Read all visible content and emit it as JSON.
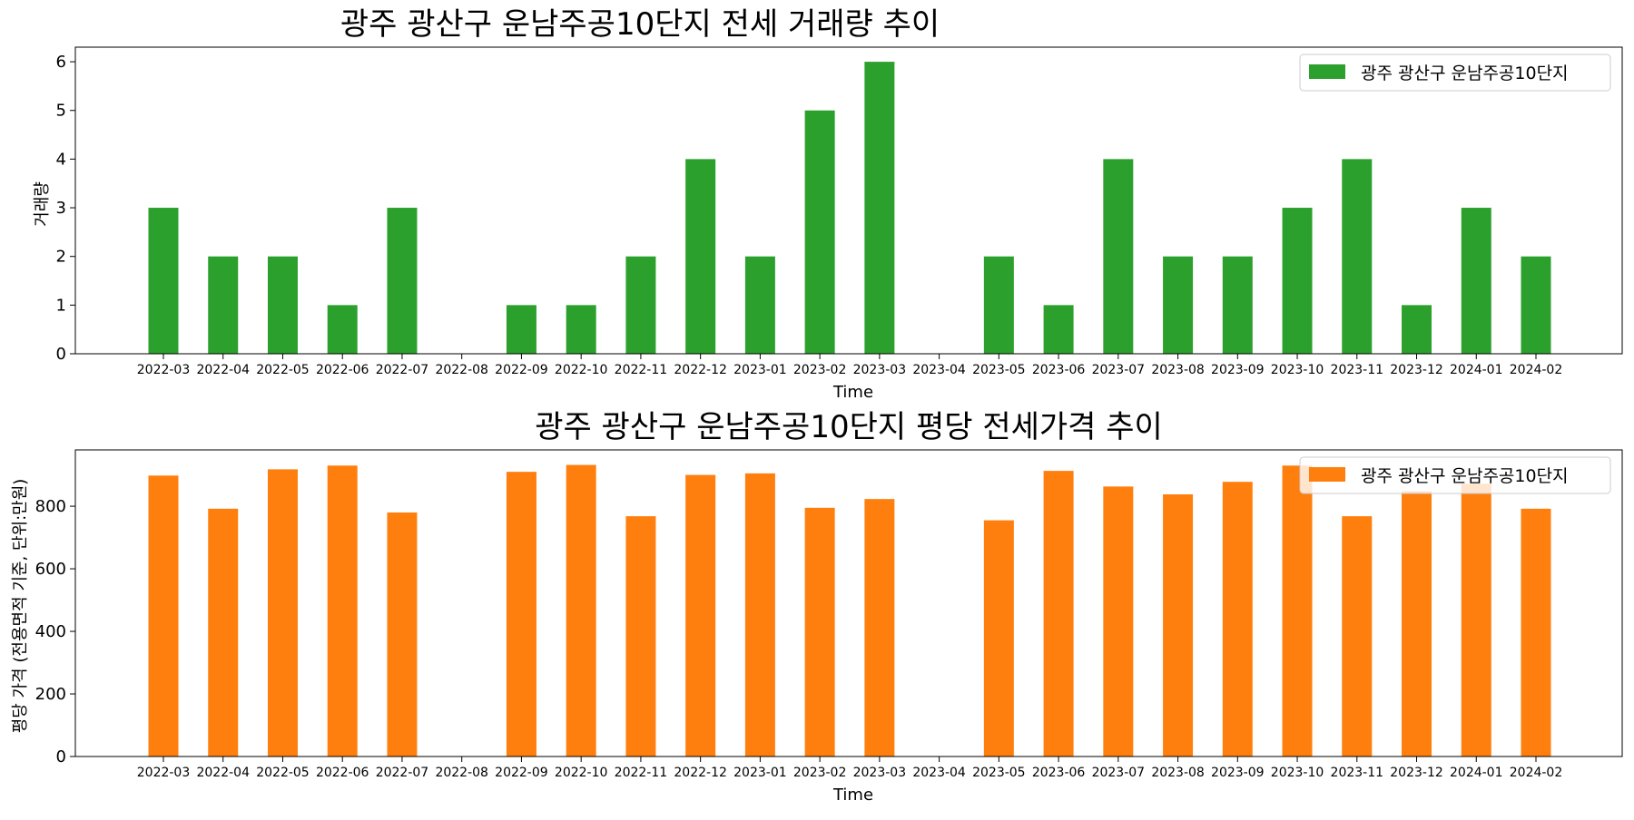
{
  "chart_data": [
    {
      "type": "bar",
      "title": "광주 광산구 운남주공10단지 전세 거래량 추이",
      "xlabel": "Time",
      "ylabel": "거래량",
      "categories": [
        "2022-03",
        "2022-04",
        "2022-05",
        "2022-06",
        "2022-07",
        "2022-08",
        "2022-09",
        "2022-10",
        "2022-11",
        "2022-12",
        "2023-01",
        "2023-02",
        "2023-03",
        "2023-04",
        "2023-05",
        "2023-06",
        "2023-07",
        "2023-08",
        "2023-09",
        "2023-10",
        "2023-11",
        "2023-12",
        "2024-01",
        "2024-02"
      ],
      "series": [
        {
          "name": "광주 광산구 운남주공10단지",
          "color": "#2ca02c",
          "values": [
            3,
            2,
            2,
            1,
            3,
            0,
            1,
            1,
            2,
            4,
            2,
            5,
            6,
            0,
            2,
            1,
            4,
            2,
            2,
            3,
            4,
            1,
            3,
            2
          ]
        }
      ],
      "ylim": [
        0,
        6.3
      ],
      "yticks": [
        0,
        1,
        2,
        3,
        4,
        5,
        6
      ],
      "legend_position": "top-right",
      "grid": false
    },
    {
      "type": "bar",
      "title": "광주 광산구 운남주공10단지 평당 전세가격 추이",
      "xlabel": "Time",
      "ylabel": "평당 가격 (전용면적 기준, 단위:만원)",
      "categories": [
        "2022-03",
        "2022-04",
        "2022-05",
        "2022-06",
        "2022-07",
        "2022-08",
        "2022-09",
        "2022-10",
        "2022-11",
        "2022-12",
        "2023-01",
        "2023-02",
        "2023-03",
        "2023-04",
        "2023-05",
        "2023-06",
        "2023-07",
        "2023-08",
        "2023-09",
        "2023-10",
        "2023-11",
        "2023-12",
        "2024-01",
        "2024-02"
      ],
      "series": [
        {
          "name": "광주 광산구 운남주공10단지",
          "color": "#ff7f0e",
          "values": [
            898,
            792,
            918,
            930,
            780,
            0,
            910,
            932,
            768,
            900,
            905,
            795,
            823,
            0,
            755,
            913,
            863,
            838,
            878,
            930,
            768,
            848,
            872,
            792
          ]
        }
      ],
      "ylim": [
        0,
        980
      ],
      "yticks": [
        0,
        200,
        400,
        600,
        800
      ],
      "legend_position": "top-right",
      "grid": false
    }
  ]
}
